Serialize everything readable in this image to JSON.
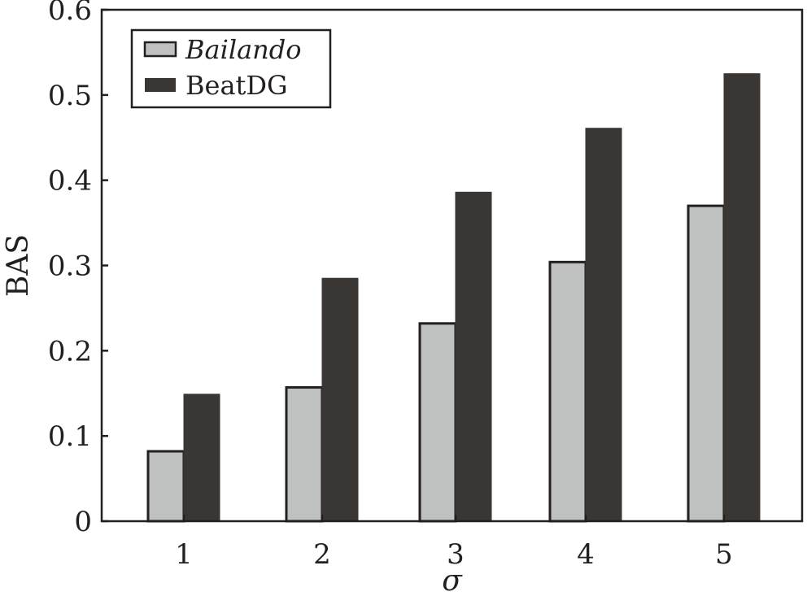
{
  "chart_data": {
    "type": "bar",
    "categories": [
      "1",
      "2",
      "3",
      "4",
      "5"
    ],
    "series": [
      {
        "name": "Bailando",
        "values": [
          0.082,
          0.157,
          0.232,
          0.304,
          0.37
        ]
      },
      {
        "name": "BeatDG",
        "values": [
          0.149,
          0.285,
          0.386,
          0.461,
          0.525
        ]
      }
    ],
    "xlabel": "σ",
    "ylabel": "BAS",
    "ylim": [
      0,
      0.6
    ],
    "yticks": [
      "0",
      "0.1",
      "0.2",
      "0.3",
      "0.4",
      "0.5",
      "0.6"
    ],
    "grid": false,
    "legend_position": "top-left",
    "colors": {
      "Bailando": "#bfc1c0",
      "BeatDG": "#3a3634",
      "frame": "#231f20"
    }
  }
}
